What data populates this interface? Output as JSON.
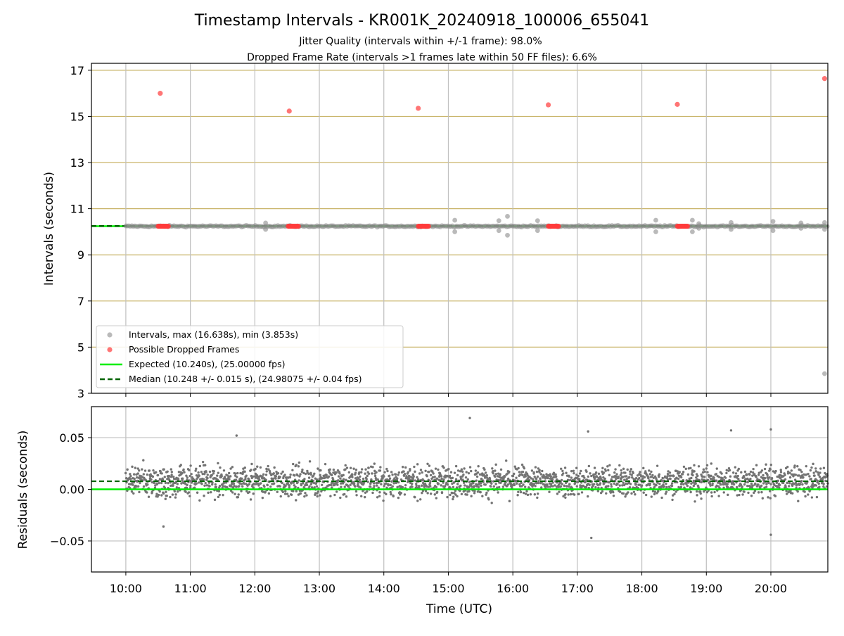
{
  "chart_data": [
    {
      "type": "scatter",
      "title": "Timestamp Intervals - KR001K_20240918_100006_655041",
      "subtitle_lines": [
        "Jitter Quality (intervals within +/-1 frame): 98.0%",
        "Dropped Frame Rate (intervals >1 frames late within 50 FF files): 6.6%"
      ],
      "xlabel": "",
      "ylabel": "Intervals (seconds)",
      "xlim": [
        "09:28",
        "20:53"
      ],
      "ylim": [
        3,
        17.3
      ],
      "yticks": [
        3,
        5,
        7,
        9,
        11,
        13,
        15,
        17
      ],
      "grid": true,
      "legend_position": "lower-left",
      "legend": [
        "Intervals, max (16.638s), min (3.853s)",
        "Possible Dropped Frames",
        "Expected (10.240s), (25.00000 fps)",
        "Median (10.248 +/- 0.015 s), (24.98075 +/- 0.04 fps)"
      ],
      "expected_interval": 10.24,
      "median_interval": 10.248,
      "colors": {
        "intervals": "#8c8c8c",
        "dropped": "#ff3b3b",
        "expected": "#00ee00",
        "median": "#006400",
        "hgrid": "#c9b469",
        "vgrid": "#bfbfbf"
      },
      "dropped_frames": [
        {
          "x": "10:32",
          "y": 16.0
        },
        {
          "x": "12:32",
          "y": 15.23
        },
        {
          "x": "14:32",
          "y": 15.35
        },
        {
          "x": "16:33",
          "y": 15.5
        },
        {
          "x": "18:33",
          "y": 15.52
        },
        {
          "x": "20:50",
          "y": 16.64
        }
      ],
      "dropped_clusters": [
        {
          "x_start": "10:30",
          "x_end": "10:40",
          "y": 10.24
        },
        {
          "x_start": "12:31",
          "x_end": "12:41",
          "y": 10.24
        },
        {
          "x_start": "14:32",
          "x_end": "14:42",
          "y": 10.24
        },
        {
          "x_start": "16:33",
          "x_end": "16:43",
          "y": 10.24
        },
        {
          "x_start": "18:33",
          "x_end": "18:43",
          "y": 10.24
        }
      ],
      "interval_outliers": [
        {
          "x": "12:10",
          "y": 10.1
        },
        {
          "x": "12:10",
          "y": 10.38
        },
        {
          "x": "15:06",
          "y": 10.0
        },
        {
          "x": "15:06",
          "y": 10.5
        },
        {
          "x": "15:47",
          "y": 10.05
        },
        {
          "x": "15:47",
          "y": 10.48
        },
        {
          "x": "15:55",
          "y": 9.85
        },
        {
          "x": "15:55",
          "y": 10.67
        },
        {
          "x": "16:23",
          "y": 10.05
        },
        {
          "x": "16:23",
          "y": 10.48
        },
        {
          "x": "18:13",
          "y": 10.0
        },
        {
          "x": "18:13",
          "y": 10.5
        },
        {
          "x": "18:47",
          "y": 10.0
        },
        {
          "x": "18:47",
          "y": 10.5
        },
        {
          "x": "18:53",
          "y": 10.15
        },
        {
          "x": "18:53",
          "y": 10.35
        },
        {
          "x": "19:23",
          "y": 10.1
        },
        {
          "x": "19:23",
          "y": 10.4
        },
        {
          "x": "20:02",
          "y": 10.05
        },
        {
          "x": "20:02",
          "y": 10.45
        },
        {
          "x": "20:28",
          "y": 10.15
        },
        {
          "x": "20:28",
          "y": 10.38
        },
        {
          "x": "20:50",
          "y": 10.1
        },
        {
          "x": "20:50",
          "y": 10.4
        },
        {
          "x": "20:50",
          "y": 3.85
        }
      ],
      "intervals_time_range": [
        "10:00",
        "20:53"
      ]
    },
    {
      "type": "scatter",
      "title": "",
      "xlabel": "Time (UTC)",
      "ylabel": "Residuals (seconds)",
      "xlim": [
        "09:28",
        "20:53"
      ],
      "xticks": [
        "10:00",
        "11:00",
        "12:00",
        "13:00",
        "14:00",
        "15:00",
        "16:00",
        "17:00",
        "18:00",
        "19:00",
        "20:00"
      ],
      "ylim": [
        -0.08,
        0.08
      ],
      "yticks": [
        "−0.05",
        "0.00",
        "0.05"
      ],
      "ytick_values": [
        -0.05,
        0,
        0.05
      ],
      "grid": true,
      "expected_residual": 0.0,
      "median_residual": 0.0078,
      "residual_spread_typical": [
        -0.02,
        0.035
      ],
      "residual_extremes": [
        {
          "x": "15:20",
          "y": 0.069
        },
        {
          "x": "17:13",
          "y": -0.047
        },
        {
          "x": "20:00",
          "y": -0.044
        },
        {
          "x": "10:35",
          "y": -0.036
        },
        {
          "x": "11:43",
          "y": 0.052
        },
        {
          "x": "17:10",
          "y": 0.056
        },
        {
          "x": "19:23",
          "y": 0.057
        },
        {
          "x": "20:00",
          "y": 0.058
        }
      ],
      "colors": {
        "points": "#737373",
        "expected": "#00ee00",
        "median": "#006400",
        "grid": "#bfbfbf"
      }
    }
  ]
}
